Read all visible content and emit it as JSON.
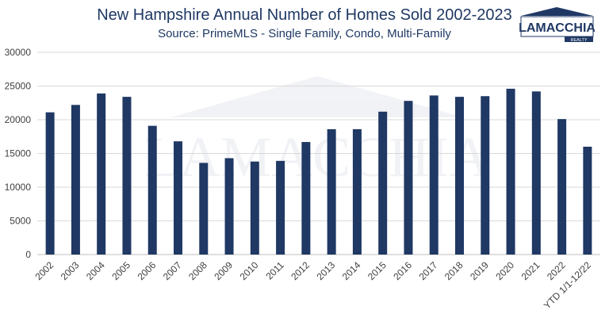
{
  "title": "New Hampshire Annual Number of Homes Sold 2002-2023",
  "subtitle": "Source: PrimeMLS - Single Family, Condo, Multi-Family",
  "logo": {
    "name": "LAMACCHIA",
    "tagline": "REALTY"
  },
  "watermark": "LAMACCHIA",
  "colors": {
    "bar": "#1f3864",
    "title": "#1f3864",
    "grid": "#d9d9d9",
    "axis_text": "#404040"
  },
  "chart_data": {
    "type": "bar",
    "title": "New Hampshire Annual Number of Homes Sold 2002-2023",
    "subtitle": "Source: PrimeMLS - Single Family, Condo, Multi-Family",
    "xlabel": "",
    "ylabel": "",
    "categories": [
      "2002",
      "2003",
      "2004",
      "2005",
      "2006",
      "2007",
      "2008",
      "2009",
      "2010",
      "2011",
      "2012",
      "2013",
      "2014",
      "2015",
      "2016",
      "2017",
      "2018",
      "2019",
      "2020",
      "2021",
      "2022",
      "YTD 1/1-12/22"
    ],
    "values": [
      21100,
      22200,
      23900,
      23400,
      19100,
      16800,
      13600,
      14300,
      13800,
      13900,
      16700,
      18600,
      18600,
      21200,
      22800,
      23600,
      23400,
      23500,
      24600,
      24200,
      20100,
      16000
    ],
    "ylim": [
      0,
      30000
    ],
    "yticks": [
      0,
      5000,
      10000,
      15000,
      20000,
      25000,
      30000
    ],
    "grid": true,
    "legend": "none"
  }
}
